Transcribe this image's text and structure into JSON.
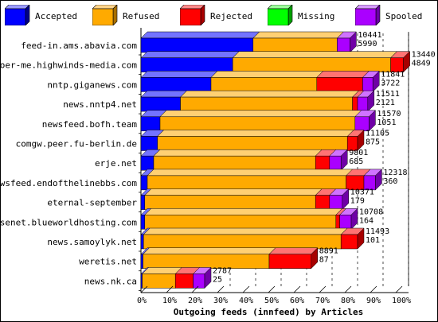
{
  "chart_data": {
    "type": "bar",
    "orientation": "horizontal",
    "stacked": true,
    "style": "3d",
    "title": "",
    "xlabel": "Outgoing feeds (innfeed) by Articles",
    "ylabel": "",
    "xlim": [
      0,
      100
    ],
    "x_ticks": [
      "0%",
      "10%",
      "20%",
      "30%",
      "40%",
      "50%",
      "60%",
      "70%",
      "80%",
      "90%",
      "100%"
    ],
    "legend_position": "top",
    "series": [
      {
        "name": "Accepted",
        "color": "#0000ff"
      },
      {
        "name": "Refused",
        "color": "#ffaa00"
      },
      {
        "name": "Rejected",
        "color": "#ff0000"
      },
      {
        "name": "Missing",
        "color": "#00ff00"
      },
      {
        "name": "Spooled",
        "color": "#aa00ff"
      }
    ],
    "feeds": [
      {
        "name": "feed-in.ams.abavia.com",
        "total": "10441",
        "accepted": "5990",
        "segments_pct": [
          44.0,
          33.0,
          0.0,
          0.0,
          5.0
        ]
      },
      {
        "name": "voer-me.highwinds-media.com",
        "total": "13440",
        "accepted": "4849",
        "segments_pct": [
          36.0,
          62.0,
          5.0,
          0.0,
          0.0
        ]
      },
      {
        "name": "nntp.giganews.com",
        "total": "11841",
        "accepted": "3722",
        "segments_pct": [
          27.5,
          41.5,
          18.0,
          0.0,
          4.0
        ]
      },
      {
        "name": "news.nntp4.net",
        "total": "11511",
        "accepted": "2121",
        "segments_pct": [
          15.5,
          67.5,
          2.0,
          0.0,
          4.0
        ]
      },
      {
        "name": "newsfeed.bofh.team",
        "total": "11570",
        "accepted": "1051",
        "segments_pct": [
          7.5,
          76.5,
          0.0,
          0.0,
          5.5
        ]
      },
      {
        "name": "comgw.peer.fu-berlin.de",
        "total": "11105",
        "accepted": "875",
        "segments_pct": [
          6.5,
          74.5,
          4.0,
          0.0,
          0.0
        ]
      },
      {
        "name": "erje.net",
        "total": "9801",
        "accepted": "685",
        "segments_pct": [
          5.0,
          63.5,
          5.5,
          0.0,
          4.5
        ]
      },
      {
        "name": "newsfeed.endofthelinebbs.com",
        "total": "12318",
        "accepted": "360",
        "segments_pct": [
          2.5,
          78.0,
          7.0,
          0.0,
          4.5
        ]
      },
      {
        "name": "eternal-september",
        "total": "10371",
        "accepted": "179",
        "segments_pct": [
          1.5,
          67.0,
          5.5,
          0.0,
          5.0
        ]
      },
      {
        "name": "usenet.blueworldhosting.com",
        "total": "10708",
        "accepted": "164",
        "segments_pct": [
          1.5,
          75.0,
          1.5,
          0.0,
          4.5
        ]
      },
      {
        "name": "news.samoylyk.net",
        "total": "11493",
        "accepted": "101",
        "segments_pct": [
          1.0,
          77.5,
          6.5,
          0.0,
          0.0
        ]
      },
      {
        "name": "weretis.net",
        "total": "8891",
        "accepted": "87",
        "segments_pct": [
          0.8,
          49.5,
          16.5,
          0.0,
          0.0
        ]
      },
      {
        "name": "news.nk.ca",
        "total": "2787",
        "accepted": "25",
        "segments_pct": [
          0.5,
          13.0,
          7.0,
          0.0,
          4.5
        ]
      }
    ]
  }
}
